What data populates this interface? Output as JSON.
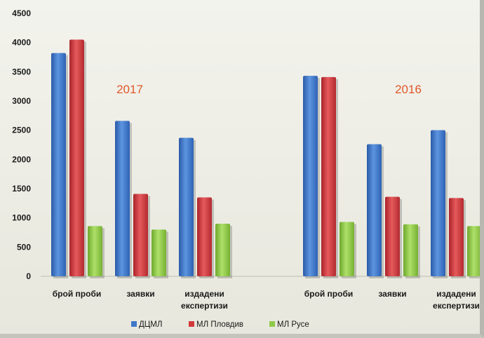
{
  "chart_data": {
    "type": "bar",
    "title": "",
    "xlabel": "",
    "ylabel": "",
    "ylim": [
      0,
      4500
    ],
    "yticks": [
      0,
      500,
      1000,
      1500,
      2000,
      2500,
      3000,
      3500,
      4000,
      4500
    ],
    "grid": false,
    "legend_position": "bottom",
    "groups": [
      {
        "year": "2017",
        "categories": [
          {
            "lines": [
              "брой проби"
            ]
          },
          {
            "lines": [
              "заявки"
            ]
          },
          {
            "lines": [
              "издадени",
              "експертизи"
            ]
          }
        ],
        "series_values": [
          [
            3820,
            2660,
            2370
          ],
          [
            4050,
            1410,
            1350
          ],
          [
            860,
            800,
            900
          ]
        ]
      },
      {
        "year": "2016",
        "categories": [
          {
            "lines": [
              "брой проби"
            ]
          },
          {
            "lines": [
              "заявки"
            ]
          },
          {
            "lines": [
              "издадени",
              "експертизи"
            ]
          }
        ],
        "series_values": [
          [
            3430,
            2260,
            2500
          ],
          [
            3410,
            1360,
            1340
          ],
          [
            930,
            890,
            860
          ]
        ]
      }
    ],
    "series": [
      {
        "name": "ДЦМЛ",
        "color": "#3f78c9"
      },
      {
        "name": "МЛ Пловдив",
        "color": "#d2383b"
      },
      {
        "name": "МЛ Русе",
        "color": "#8fc94a"
      }
    ]
  }
}
